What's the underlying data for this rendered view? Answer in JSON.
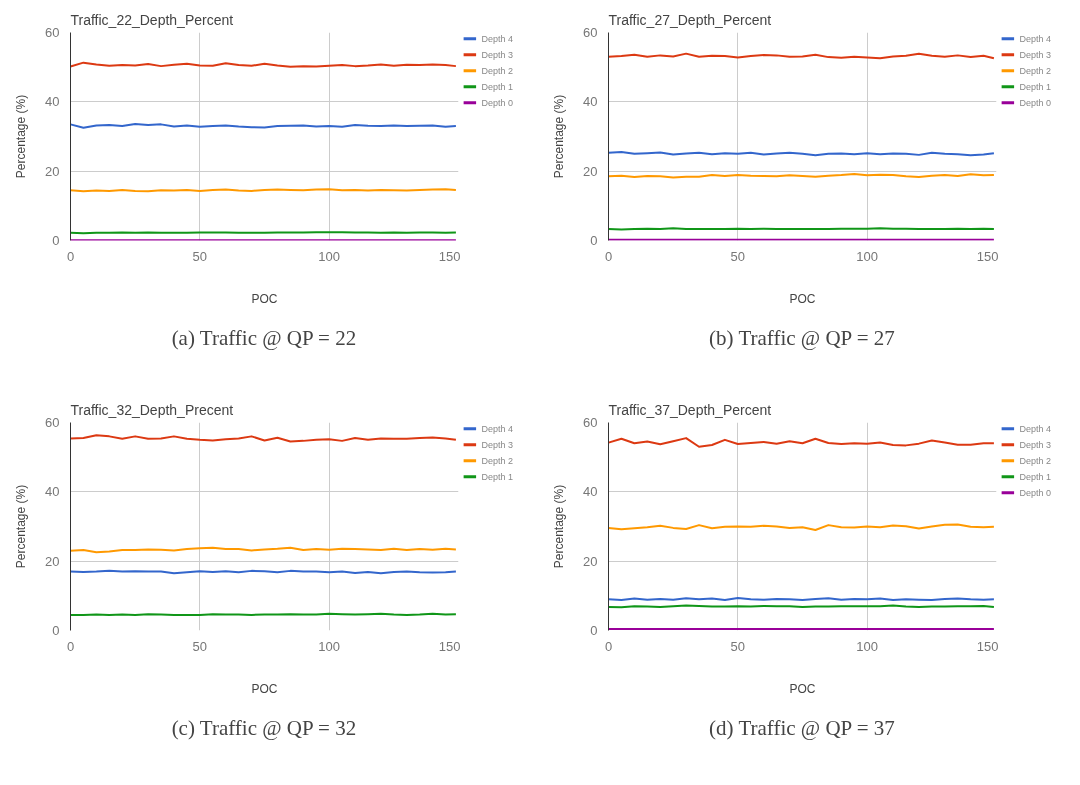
{
  "chart_data": [
    {
      "type": "line",
      "title": "Traffic_22_Depth_Percent",
      "xlabel": "POC",
      "ylabel": "Percentage (%)",
      "annotations": [
        "(a) Traffic @ QP = 22"
      ],
      "x": [
        0,
        5,
        10,
        15,
        20,
        25,
        30,
        35,
        40,
        45,
        50,
        55,
        60,
        65,
        70,
        75,
        80,
        85,
        90,
        95,
        100,
        105,
        110,
        115,
        120,
        125,
        130,
        135,
        140,
        145,
        149
      ],
      "xlim": [
        0,
        150
      ],
      "ylim": [
        0,
        60
      ],
      "xticks": [
        0,
        50,
        100,
        150
      ],
      "yticks": [
        0,
        20,
        40,
        60
      ],
      "grid": true,
      "legend": "right",
      "series": [
        {
          "name": "Depth 4",
          "color": "#3366cc",
          "values": [
            33.5,
            32.5,
            33.2,
            33.3,
            33.0,
            33.6,
            33.3,
            33.5,
            32.9,
            33.2,
            32.8,
            33.0,
            33.2,
            32.9,
            32.7,
            32.6,
            33.0,
            33.1,
            33.2,
            32.9,
            33.0,
            32.8,
            33.3,
            33.1,
            33.0,
            33.2,
            33.0,
            33.1,
            33.2,
            32.8,
            33.0
          ]
        },
        {
          "name": "Depth 3",
          "color": "#dc3912",
          "values": [
            50.2,
            51.3,
            50.8,
            50.4,
            50.6,
            50.5,
            50.9,
            50.3,
            50.7,
            51.0,
            50.5,
            50.4,
            51.1,
            50.6,
            50.4,
            51.0,
            50.5,
            50.1,
            50.3,
            50.2,
            50.4,
            50.6,
            50.3,
            50.5,
            50.8,
            50.4,
            50.7,
            50.6,
            50.8,
            50.6,
            50.3
          ]
        },
        {
          "name": "Depth 2",
          "color": "#ff9900",
          "values": [
            14.5,
            14.2,
            14.4,
            14.3,
            14.6,
            14.3,
            14.2,
            14.5,
            14.4,
            14.6,
            14.3,
            14.6,
            14.7,
            14.4,
            14.3,
            14.6,
            14.7,
            14.6,
            14.5,
            14.7,
            14.8,
            14.5,
            14.6,
            14.4,
            14.6,
            14.5,
            14.4,
            14.6,
            14.7,
            14.8,
            14.6
          ]
        },
        {
          "name": "Depth 1",
          "color": "#109618",
          "values": [
            2.2,
            2.1,
            2.2,
            2.2,
            2.3,
            2.2,
            2.3,
            2.2,
            2.2,
            2.2,
            2.3,
            2.3,
            2.3,
            2.2,
            2.2,
            2.2,
            2.3,
            2.3,
            2.3,
            2.4,
            2.4,
            2.4,
            2.3,
            2.3,
            2.2,
            2.3,
            2.2,
            2.3,
            2.3,
            2.2,
            2.3
          ]
        },
        {
          "name": "Depth 0",
          "color": "#990099",
          "values": [
            0.1,
            0.1,
            0.1,
            0.1,
            0.1,
            0.1,
            0.1,
            0.1,
            0.1,
            0.1,
            0.1,
            0.1,
            0.1,
            0.1,
            0.1,
            0.1,
            0.1,
            0.1,
            0.1,
            0.1,
            0.1,
            0.1,
            0.1,
            0.1,
            0.1,
            0.1,
            0.1,
            0.1,
            0.1,
            0.1,
            0.1
          ]
        }
      ]
    },
    {
      "type": "line",
      "title": "Traffic_27_Depth_Percent",
      "xlabel": "POC",
      "ylabel": "Percentage (%)",
      "annotations": [
        "(b) Traffic @ QP = 27"
      ],
      "x": [
        0,
        5,
        10,
        15,
        20,
        25,
        30,
        35,
        40,
        45,
        50,
        55,
        60,
        65,
        70,
        75,
        80,
        85,
        90,
        95,
        100,
        105,
        110,
        115,
        120,
        125,
        130,
        135,
        140,
        145,
        149
      ],
      "xlim": [
        0,
        150
      ],
      "ylim": [
        0,
        60
      ],
      "xticks": [
        0,
        50,
        100,
        150
      ],
      "yticks": [
        0,
        20,
        40,
        60
      ],
      "grid": true,
      "legend": "right",
      "series": [
        {
          "name": "Depth 4",
          "color": "#3366cc",
          "values": [
            25.3,
            25.5,
            25.0,
            25.2,
            25.4,
            24.8,
            25.1,
            25.3,
            24.9,
            25.2,
            25.0,
            25.3,
            24.8,
            25.1,
            25.3,
            25.0,
            24.6,
            25.0,
            25.1,
            24.9,
            25.2,
            24.9,
            25.1,
            25.0,
            24.7,
            25.3,
            25.0,
            24.9,
            24.6,
            24.8,
            25.2
          ]
        },
        {
          "name": "Depth 3",
          "color": "#dc3912",
          "values": [
            53.0,
            53.2,
            53.6,
            53.0,
            53.4,
            53.1,
            53.9,
            53.0,
            53.3,
            53.2,
            52.8,
            53.2,
            53.5,
            53.4,
            53.0,
            53.1,
            53.6,
            52.9,
            52.7,
            53.0,
            52.8,
            52.6,
            53.1,
            53.3,
            53.9,
            53.3,
            53.0,
            53.4,
            52.9,
            53.3,
            52.6
          ]
        },
        {
          "name": "Depth 2",
          "color": "#ff9900",
          "values": [
            18.5,
            18.7,
            18.3,
            18.6,
            18.5,
            18.2,
            18.4,
            18.4,
            18.9,
            18.6,
            18.9,
            18.7,
            18.6,
            18.5,
            18.8,
            18.6,
            18.4,
            18.7,
            18.9,
            19.2,
            18.8,
            19.0,
            18.9,
            18.5,
            18.3,
            18.7,
            18.9,
            18.6,
            19.1,
            18.8,
            18.9
          ]
        },
        {
          "name": "Depth 1",
          "color": "#109618",
          "values": [
            3.3,
            3.2,
            3.3,
            3.4,
            3.3,
            3.5,
            3.3,
            3.3,
            3.3,
            3.3,
            3.4,
            3.3,
            3.4,
            3.3,
            3.3,
            3.3,
            3.3,
            3.3,
            3.4,
            3.4,
            3.4,
            3.5,
            3.4,
            3.4,
            3.3,
            3.3,
            3.3,
            3.4,
            3.3,
            3.4,
            3.3
          ]
        },
        {
          "name": "Depth 0",
          "color": "#990099",
          "values": [
            0.2,
            0.2,
            0.2,
            0.2,
            0.2,
            0.2,
            0.2,
            0.2,
            0.2,
            0.2,
            0.2,
            0.2,
            0.2,
            0.2,
            0.2,
            0.2,
            0.2,
            0.2,
            0.2,
            0.2,
            0.2,
            0.2,
            0.2,
            0.2,
            0.2,
            0.2,
            0.2,
            0.2,
            0.2,
            0.2,
            0.2
          ]
        }
      ]
    },
    {
      "type": "line",
      "title": "Traffic_32_Depth_Precent",
      "xlabel": "POC",
      "ylabel": "Percentage (%)",
      "annotations": [
        "(c) Traffic @ QP = 32"
      ],
      "x": [
        0,
        5,
        10,
        15,
        20,
        25,
        30,
        35,
        40,
        45,
        50,
        55,
        60,
        65,
        70,
        75,
        80,
        85,
        90,
        95,
        100,
        105,
        110,
        115,
        120,
        125,
        130,
        135,
        140,
        145,
        149
      ],
      "xlim": [
        0,
        150
      ],
      "ylim": [
        0,
        60
      ],
      "xticks": [
        0,
        50,
        100,
        150
      ],
      "yticks": [
        0,
        20,
        40,
        60
      ],
      "grid": true,
      "legend": "right",
      "series": [
        {
          "name": "Depth 4",
          "color": "#3366cc",
          "values": [
            17.0,
            16.9,
            17.0,
            17.2,
            17.0,
            17.1,
            17.0,
            17.0,
            16.5,
            16.8,
            17.1,
            16.9,
            17.1,
            16.8,
            17.2,
            17.1,
            16.8,
            17.2,
            17.0,
            17.0,
            16.8,
            17.0,
            16.6,
            16.9,
            16.5,
            16.9,
            17.0,
            16.8,
            16.7,
            16.8,
            17.0
          ]
        },
        {
          "name": "Depth 3",
          "color": "#dc3912",
          "values": [
            55.4,
            55.5,
            56.3,
            56.0,
            55.3,
            56.0,
            55.3,
            55.4,
            56.0,
            55.3,
            55.0,
            54.8,
            55.2,
            55.4,
            56.0,
            54.8,
            55.6,
            54.5,
            54.7,
            55.0,
            55.2,
            54.7,
            55.5,
            55.0,
            55.4,
            55.3,
            55.3,
            55.5,
            55.7,
            55.4,
            55.0
          ]
        },
        {
          "name": "Depth 2",
          "color": "#ff9900",
          "values": [
            23.0,
            23.2,
            22.6,
            22.8,
            23.2,
            23.2,
            23.4,
            23.3,
            23.1,
            23.5,
            23.7,
            23.9,
            23.5,
            23.5,
            23.1,
            23.4,
            23.6,
            23.9,
            23.2,
            23.5,
            23.3,
            23.6,
            23.5,
            23.4,
            23.2,
            23.6,
            23.2,
            23.5,
            23.3,
            23.6,
            23.4
          ]
        },
        {
          "name": "Depth 1",
          "color": "#109618",
          "values": [
            4.5,
            4.5,
            4.6,
            4.5,
            4.6,
            4.5,
            4.7,
            4.6,
            4.5,
            4.5,
            4.5,
            4.7,
            4.6,
            4.6,
            4.5,
            4.6,
            4.6,
            4.7,
            4.6,
            4.6,
            4.8,
            4.7,
            4.6,
            4.7,
            4.8,
            4.6,
            4.5,
            4.6,
            4.8,
            4.6,
            4.7
          ]
        }
      ]
    },
    {
      "type": "line",
      "title": "Traffic_37_Depth_Percent",
      "xlabel": "POC",
      "ylabel": "Percentage (%)",
      "annotations": [
        "(d) Traffic @ QP = 37"
      ],
      "x": [
        0,
        5,
        10,
        15,
        20,
        25,
        30,
        35,
        40,
        45,
        50,
        55,
        60,
        65,
        70,
        75,
        80,
        85,
        90,
        95,
        100,
        105,
        110,
        115,
        120,
        125,
        130,
        135,
        140,
        145,
        149
      ],
      "xlim": [
        0,
        150
      ],
      "ylim": [
        0,
        60
      ],
      "xticks": [
        0,
        50,
        100,
        150
      ],
      "yticks": [
        0,
        20,
        40,
        60
      ],
      "grid": true,
      "legend": "right",
      "series": [
        {
          "name": "Depth 4",
          "color": "#3366cc",
          "values": [
            9.0,
            8.8,
            9.2,
            8.9,
            9.1,
            8.9,
            9.3,
            9.0,
            9.2,
            8.8,
            9.4,
            9.0,
            8.9,
            9.1,
            9.0,
            8.8,
            9.1,
            9.3,
            8.9,
            9.1,
            9.0,
            9.2,
            8.8,
            9.0,
            8.9,
            8.8,
            9.1,
            9.2,
            9.0,
            8.9,
            9.0
          ]
        },
        {
          "name": "Depth 3",
          "color": "#dc3912",
          "values": [
            54.2,
            55.3,
            54.0,
            54.5,
            53.7,
            54.6,
            55.5,
            53.0,
            53.5,
            55.0,
            53.8,
            54.1,
            54.4,
            53.9,
            54.6,
            54.0,
            55.3,
            54.1,
            53.8,
            54.0,
            53.9,
            54.2,
            53.5,
            53.4,
            53.9,
            54.8,
            54.2,
            53.6,
            53.6,
            54.0,
            54.0
          ]
        },
        {
          "name": "Depth 2",
          "color": "#ff9900",
          "values": [
            29.6,
            29.2,
            29.5,
            29.8,
            30.2,
            29.6,
            29.3,
            30.4,
            29.5,
            29.9,
            30.0,
            29.9,
            30.2,
            30.0,
            29.6,
            29.8,
            29.0,
            30.4,
            29.8,
            29.7,
            30.0,
            29.8,
            30.3,
            30.1,
            29.4,
            30.0,
            30.5,
            30.6,
            29.9,
            29.8,
            29.9
          ]
        },
        {
          "name": "Depth 1",
          "color": "#109618",
          "values": [
            6.8,
            6.7,
            7.0,
            6.9,
            6.8,
            7.0,
            7.2,
            7.1,
            6.9,
            6.9,
            7.0,
            6.9,
            7.1,
            7.0,
            7.0,
            6.8,
            6.9,
            6.9,
            7.0,
            7.0,
            7.0,
            7.0,
            7.2,
            6.9,
            6.8,
            6.9,
            6.9,
            7.0,
            7.0,
            7.1,
            6.8
          ]
        },
        {
          "name": "Depth 0",
          "color": "#990099",
          "values": [
            0.4,
            0.4,
            0.4,
            0.4,
            0.4,
            0.4,
            0.4,
            0.4,
            0.4,
            0.4,
            0.4,
            0.4,
            0.4,
            0.4,
            0.4,
            0.4,
            0.4,
            0.4,
            0.4,
            0.4,
            0.4,
            0.4,
            0.4,
            0.4,
            0.4,
            0.4,
            0.4,
            0.4,
            0.4,
            0.4,
            0.4
          ]
        }
      ]
    }
  ]
}
